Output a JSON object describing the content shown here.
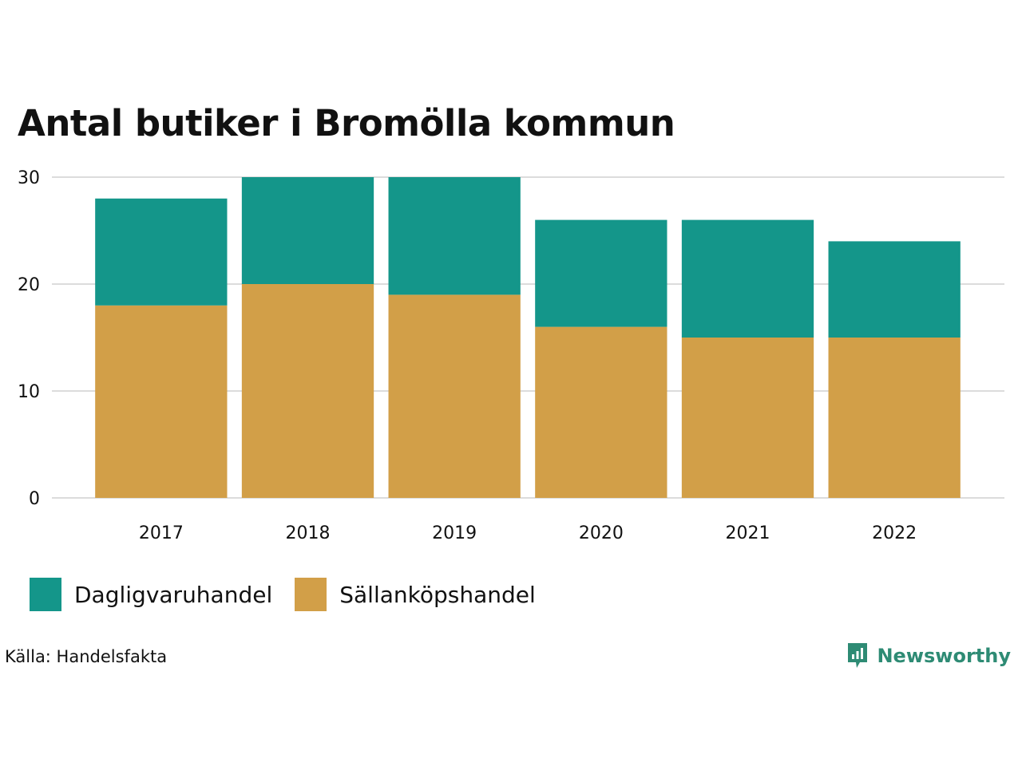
{
  "chart_data": {
    "type": "bar",
    "stacked": true,
    "title": "Antal butiker i Bromölla kommun",
    "categories": [
      "2017",
      "2018",
      "2019",
      "2020",
      "2021",
      "2022"
    ],
    "series": [
      {
        "name": "Sällanköpshandel",
        "values": [
          18,
          20,
          19,
          16,
          15,
          15
        ],
        "color": "#D29F48"
      },
      {
        "name": "Dagligvaruhandel",
        "values": [
          10,
          10,
          11,
          10,
          11,
          9
        ],
        "color": "#14968A"
      }
    ],
    "ylim": [
      0,
      30
    ],
    "yticks": [
      0,
      10,
      20,
      30
    ],
    "xlabel": "",
    "ylabel": "",
    "grid": true,
    "legend_position": "bottom-left"
  },
  "legend": [
    {
      "label": "Dagligvaruhandel",
      "color": "#14968A"
    },
    {
      "label": "Sällanköpshandel",
      "color": "#D29F48"
    }
  ],
  "source": "Källa: Handelsfakta",
  "brand": {
    "name": "Newsworthy",
    "color": "#2E8B74",
    "icon": "newsworthy-logo-icon"
  },
  "colors": {
    "grid": "#DCDCDC",
    "text": "#111111",
    "background": "#FFFFFF"
  }
}
